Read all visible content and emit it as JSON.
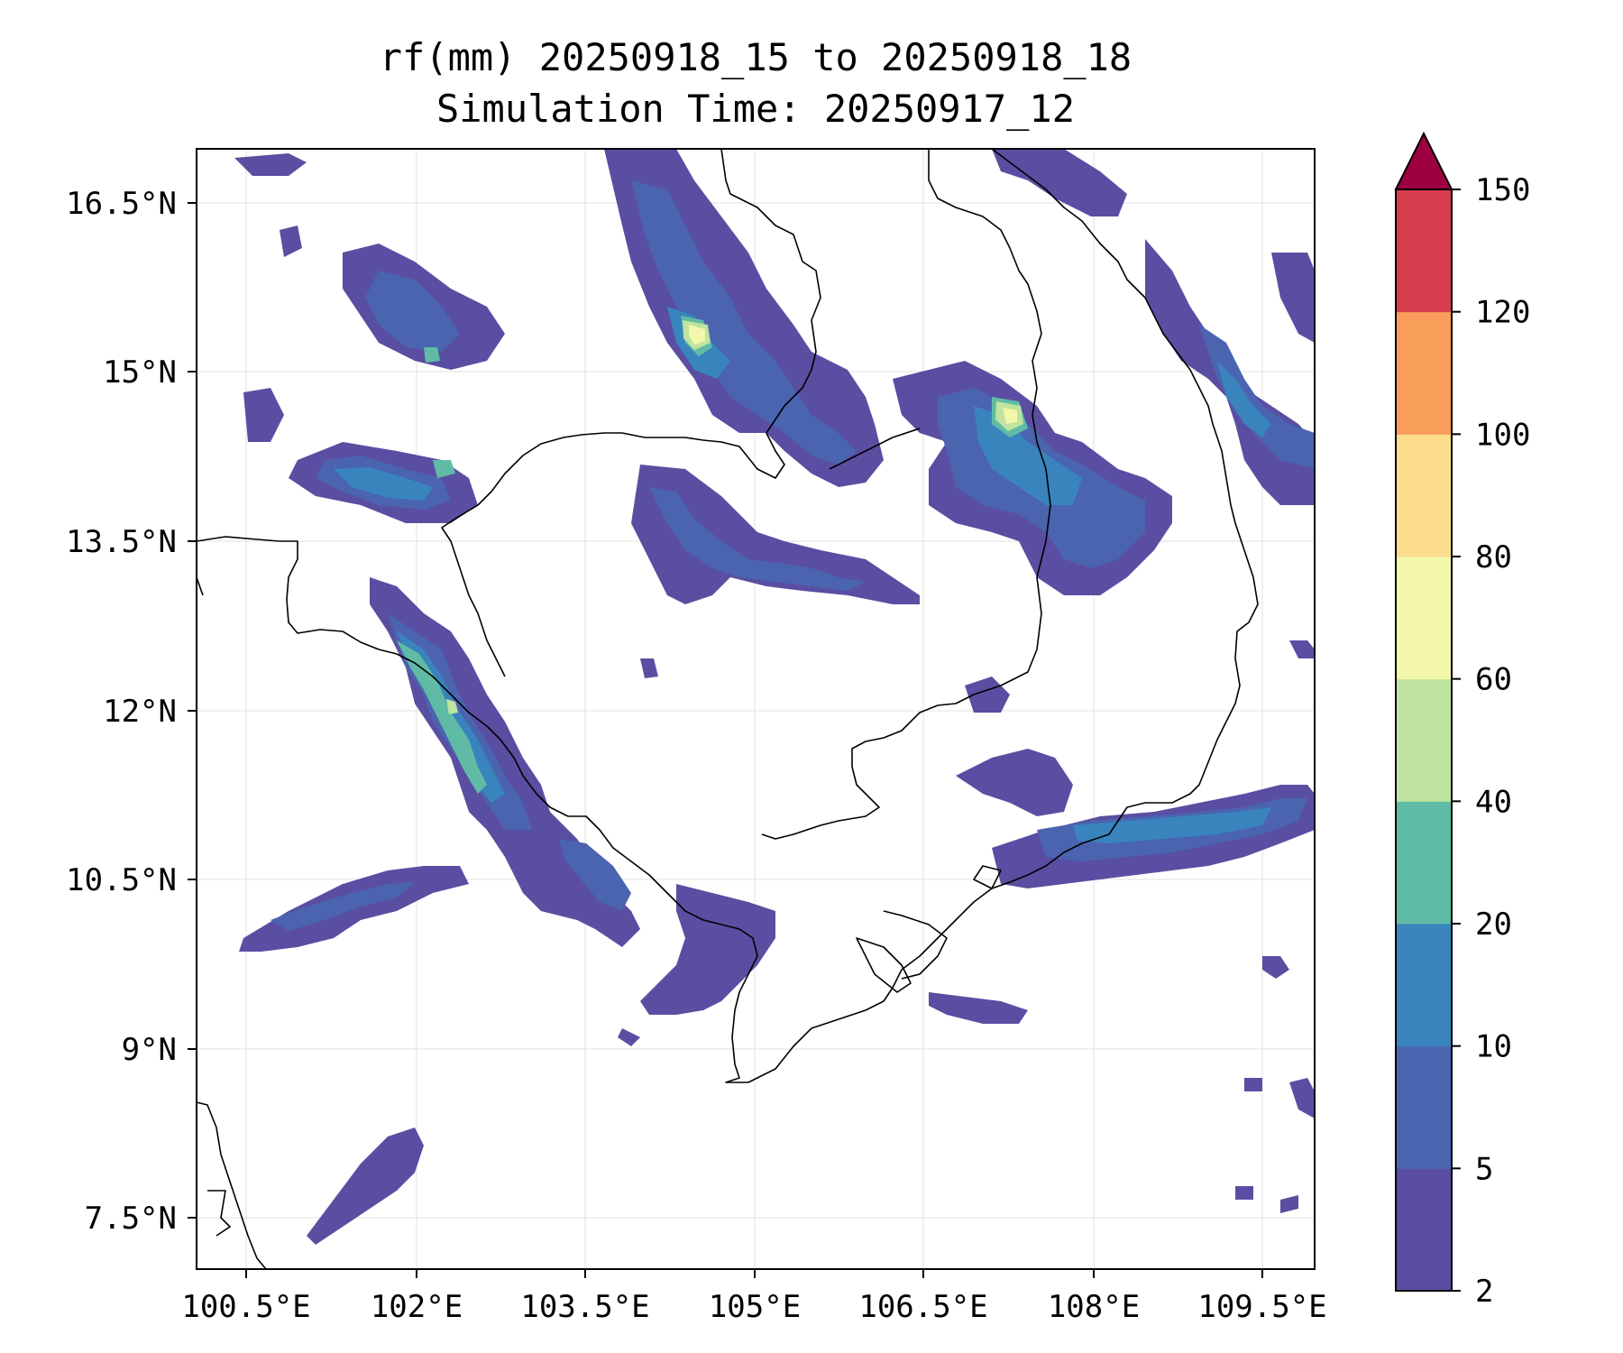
{
  "title": {
    "line1": "rf(mm) 20250918_15 to 20250918_18",
    "line2": "Simulation Time: 20250917_12"
  },
  "map": {
    "lon_ticks": [
      "100.5°E",
      "102°E",
      "103.5°E",
      "105°E",
      "106.5°E",
      "108°E",
      "109.5°E"
    ],
    "lat_ticks": [
      "16.5°N",
      "15°N",
      "13.5°N",
      "12°N",
      "10.5°N",
      "9°N",
      "7.5°N"
    ],
    "lon_range": [
      100.5,
      110.0
    ],
    "lat_range": [
      7.0,
      17.0
    ],
    "grid": true
  },
  "colorbar": {
    "levels": [
      "2",
      "5",
      "10",
      "20",
      "40",
      "60",
      "80",
      "100",
      "120",
      "150"
    ],
    "colors": [
      "#5a4ea2",
      "#4a64b0",
      "#3984bd",
      "#60bba6",
      "#bfe4a0",
      "#f3f7ab",
      "#fbdd8b",
      "#f99e5a",
      "#d63f4e",
      "#9e0142"
    ],
    "extend": "max"
  }
}
